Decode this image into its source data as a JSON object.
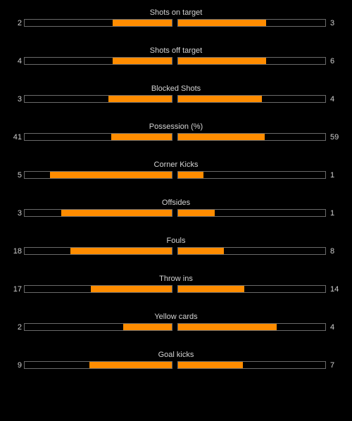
{
  "colors": {
    "background": "#000000",
    "bar_fill": "#ff8c00",
    "bar_border": "#6a6a6a",
    "text": "#cfcfcf"
  },
  "stats": [
    {
      "label": "Shots on target",
      "home": "2",
      "away": "3",
      "home_fill": 0.4,
      "away_fill": 0.6
    },
    {
      "label": "Shots off target",
      "home": "4",
      "away": "6",
      "home_fill": 0.4,
      "away_fill": 0.6
    },
    {
      "label": "Blocked Shots",
      "home": "3",
      "away": "4",
      "home_fill": 0.43,
      "away_fill": 0.57
    },
    {
      "label": "Possession (%)",
      "home": "41",
      "away": "59",
      "home_fill": 0.41,
      "away_fill": 0.59
    },
    {
      "label": "Corner Kicks",
      "home": "5",
      "away": "1",
      "home_fill": 0.83,
      "away_fill": 0.17
    },
    {
      "label": "Offsides",
      "home": "3",
      "away": "1",
      "home_fill": 0.75,
      "away_fill": 0.25
    },
    {
      "label": "Fouls",
      "home": "18",
      "away": "8",
      "home_fill": 0.69,
      "away_fill": 0.31
    },
    {
      "label": "Throw ins",
      "home": "17",
      "away": "14",
      "home_fill": 0.55,
      "away_fill": 0.45
    },
    {
      "label": "Yellow cards",
      "home": "2",
      "away": "4",
      "home_fill": 0.33,
      "away_fill": 0.67
    },
    {
      "label": "Goal kicks",
      "home": "9",
      "away": "7",
      "home_fill": 0.56,
      "away_fill": 0.44
    }
  ]
}
